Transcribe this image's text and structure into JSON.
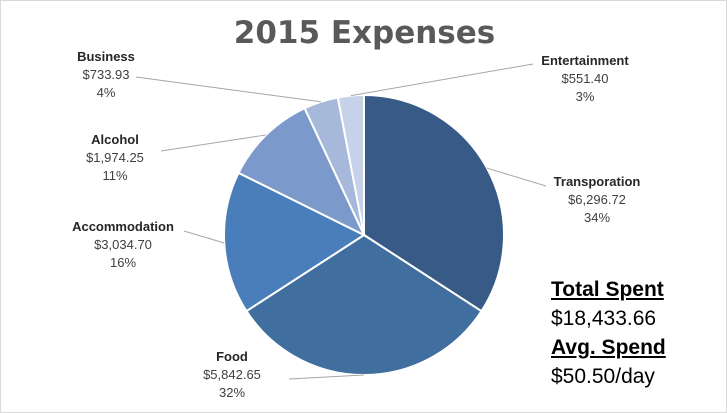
{
  "chart_data": {
    "type": "pie",
    "title": "2015 Expenses",
    "slices": [
      {
        "name": "Transporation",
        "value": 6296.72,
        "value_label": "$6,296.72",
        "percent_label": "34%",
        "color": "#375A86"
      },
      {
        "name": "Food",
        "value": 5842.65,
        "value_label": "$5,842.65",
        "percent_label": "32%",
        "color": "#406E9E"
      },
      {
        "name": "Accommodation",
        "value": 3034.7,
        "value_label": "$3,034.70",
        "percent_label": "16%",
        "color": "#4A7EBB"
      },
      {
        "name": "Alcohol",
        "value": 1974.25,
        "value_label": "$1,974.25",
        "percent_label": "11%",
        "color": "#7B9ACB"
      },
      {
        "name": "Business",
        "value": 733.93,
        "value_label": "$733.93",
        "percent_label": "4%",
        "color": "#A6B9DA"
      },
      {
        "name": "Entertainment",
        "value": 551.4,
        "value_label": "$551.40",
        "percent_label": "3%",
        "color": "#C6D2E7"
      }
    ],
    "start_angle": "12 o'clock",
    "direction": "clockwise",
    "legend": "none"
  },
  "summary": {
    "total_heading": "Total Spent",
    "total_value": "$18,433.66",
    "avg_heading": "Avg. Spend",
    "avg_value": "$50.50/day"
  }
}
